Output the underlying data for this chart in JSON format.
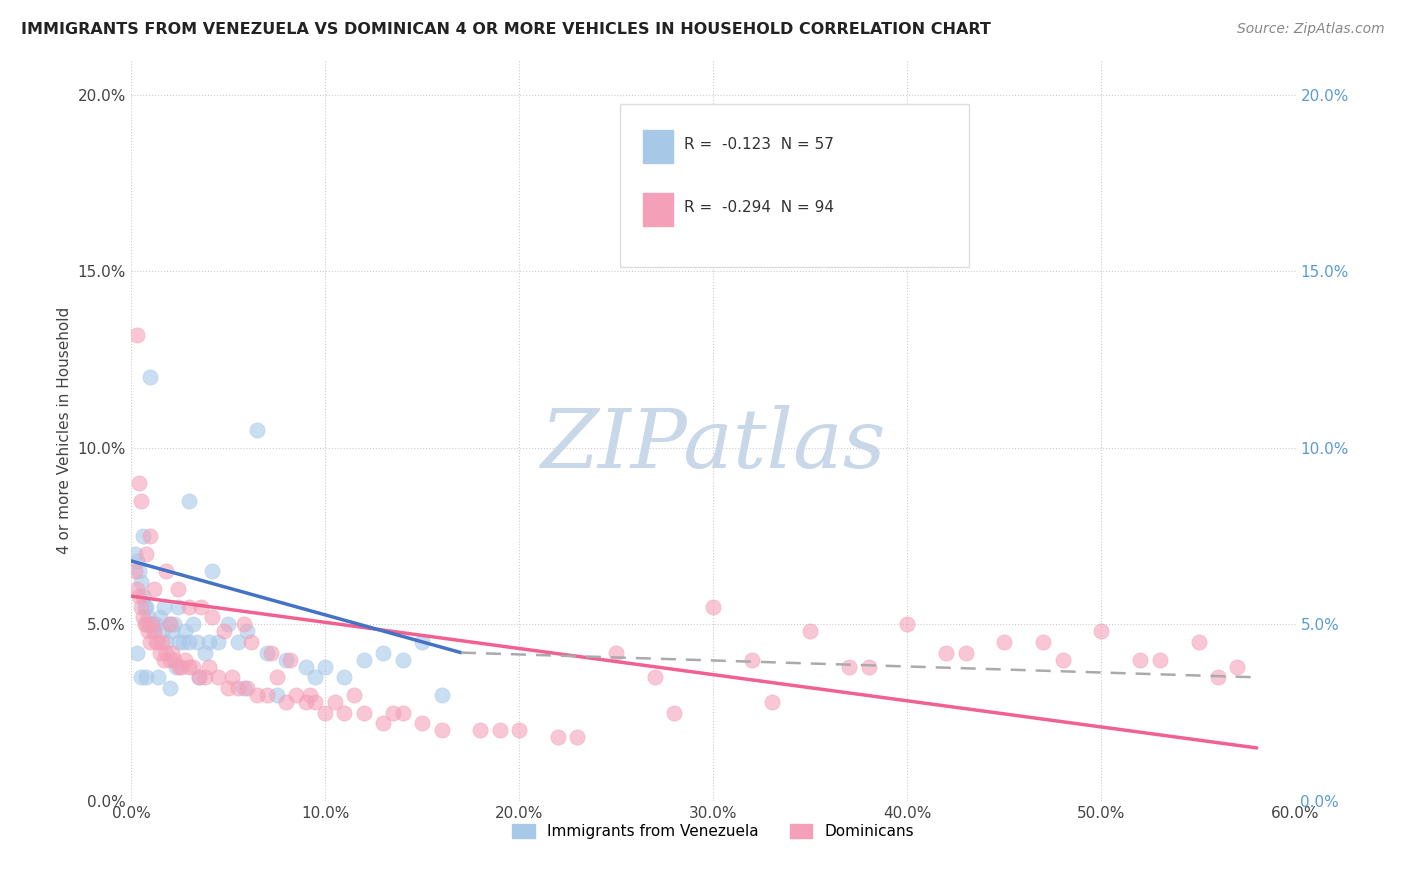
{
  "title": "IMMIGRANTS FROM VENEZUELA VS DOMINICAN 4 OR MORE VEHICLES IN HOUSEHOLD CORRELATION CHART",
  "source": "Source: ZipAtlas.com",
  "xlabel_ticks": [
    "0.0%",
    "10.0%",
    "20.0%",
    "30.0%",
    "40.0%",
    "50.0%",
    "60.0%"
  ],
  "xlabel_vals": [
    0,
    10,
    20,
    30,
    40,
    50,
    60
  ],
  "ylabel_ticks": [
    "0.0%",
    "5.0%",
    "10.0%",
    "15.0%",
    "20.0%"
  ],
  "ylabel_vals": [
    0,
    5,
    10,
    15,
    20
  ],
  "ylabel_label": "4 or more Vehicles in Household",
  "legend_label1": "Immigrants from Venezuela",
  "legend_label2": "Dominicans",
  "R1": "-0.123",
  "N1": "57",
  "R2": "-0.294",
  "N2": "94",
  "color_venezuela": "#A8C8E8",
  "color_dominican": "#F4A0B8",
  "color_line_venezuela": "#4472C4",
  "color_line_dominican": "#F06090",
  "color_dashed": "#AAAAAA",
  "watermark": "ZIPatlas",
  "watermark_color": "#C8D8E8",
  "background": "#FFFFFF",
  "xlim": [
    0,
    60
  ],
  "ylim": [
    0,
    21
  ],
  "ven_line_x0": 0,
  "ven_line_y0": 6.8,
  "ven_line_x1": 17,
  "ven_line_y1": 4.2,
  "ven_dash_x0": 17,
  "ven_dash_y0": 4.2,
  "ven_dash_x1": 58,
  "ven_dash_y1": 3.5,
  "dom_line_x0": 0,
  "dom_line_y0": 5.8,
  "dom_line_x1": 58,
  "dom_line_y1": 1.5,
  "venezuela_x": [
    0.2,
    0.3,
    0.4,
    0.5,
    0.6,
    0.7,
    0.8,
    0.9,
    1.0,
    1.1,
    1.2,
    1.3,
    1.5,
    1.6,
    1.7,
    1.8,
    2.0,
    2.1,
    2.2,
    2.4,
    2.5,
    2.7,
    2.8,
    3.0,
    3.2,
    3.4,
    3.8,
    4.0,
    4.5,
    5.0,
    5.5,
    6.0,
    7.0,
    8.0,
    9.0,
    10.0,
    11.0,
    12.0,
    13.0,
    14.0,
    15.0,
    0.3,
    0.5,
    0.8,
    1.4,
    2.3,
    3.5,
    5.8,
    7.5,
    2.0,
    0.6,
    1.0,
    3.0,
    4.2,
    6.5,
    16.0,
    9.5
  ],
  "venezuela_y": [
    7.0,
    6.8,
    6.5,
    6.2,
    5.8,
    5.5,
    5.5,
    5.2,
    5.0,
    5.0,
    4.8,
    5.0,
    5.2,
    4.8,
    5.5,
    4.5,
    5.0,
    4.8,
    5.0,
    5.5,
    4.5,
    4.5,
    4.8,
    4.5,
    5.0,
    4.5,
    4.2,
    4.5,
    4.5,
    5.0,
    4.5,
    4.8,
    4.2,
    4.0,
    3.8,
    3.8,
    3.5,
    4.0,
    4.2,
    4.0,
    4.5,
    4.2,
    3.5,
    3.5,
    3.5,
    3.8,
    3.5,
    3.2,
    3.0,
    3.2,
    7.5,
    12.0,
    8.5,
    6.5,
    10.5,
    3.0,
    3.5
  ],
  "dominican_x": [
    0.2,
    0.3,
    0.4,
    0.5,
    0.6,
    0.7,
    0.8,
    0.9,
    1.0,
    1.1,
    1.2,
    1.3,
    1.4,
    1.5,
    1.6,
    1.7,
    1.8,
    2.0,
    2.1,
    2.2,
    2.5,
    2.6,
    2.8,
    3.0,
    3.2,
    3.5,
    3.8,
    4.0,
    4.5,
    5.0,
    5.2,
    5.5,
    6.0,
    6.5,
    7.0,
    7.5,
    8.0,
    8.5,
    9.0,
    9.5,
    10.0,
    10.5,
    11.0,
    12.0,
    13.0,
    14.0,
    15.0,
    16.0,
    18.0,
    20.0,
    22.0,
    25.0,
    28.0,
    30.0,
    33.0,
    35.0,
    38.0,
    40.0,
    43.0,
    45.0,
    48.0,
    50.0,
    53.0,
    55.0,
    57.0,
    0.3,
    0.5,
    0.8,
    1.2,
    2.0,
    3.0,
    4.2,
    5.8,
    7.2,
    9.2,
    11.5,
    0.4,
    1.0,
    1.8,
    2.4,
    3.6,
    4.8,
    6.2,
    8.2,
    13.5,
    19.0,
    27.0,
    32.0,
    37.0,
    42.0,
    47.0,
    52.0,
    56.0,
    23.0
  ],
  "dominican_y": [
    6.5,
    6.0,
    5.8,
    5.5,
    5.2,
    5.0,
    5.0,
    4.8,
    4.5,
    5.0,
    4.8,
    4.5,
    4.5,
    4.2,
    4.5,
    4.0,
    4.2,
    4.0,
    4.2,
    4.0,
    3.8,
    3.8,
    4.0,
    3.8,
    3.8,
    3.5,
    3.5,
    3.8,
    3.5,
    3.2,
    3.5,
    3.2,
    3.2,
    3.0,
    3.0,
    3.5,
    2.8,
    3.0,
    2.8,
    2.8,
    2.5,
    2.8,
    2.5,
    2.5,
    2.2,
    2.5,
    2.2,
    2.0,
    2.0,
    2.0,
    1.8,
    4.2,
    2.5,
    5.5,
    2.8,
    4.8,
    3.8,
    5.0,
    4.2,
    4.5,
    4.0,
    4.8,
    4.0,
    4.5,
    3.8,
    13.2,
    8.5,
    7.0,
    6.0,
    5.0,
    5.5,
    5.2,
    5.0,
    4.2,
    3.0,
    3.0,
    9.0,
    7.5,
    6.5,
    6.0,
    5.5,
    4.8,
    4.5,
    4.0,
    2.5,
    2.0,
    3.5,
    4.0,
    3.8,
    4.2,
    4.5,
    4.0,
    3.5,
    1.8
  ]
}
